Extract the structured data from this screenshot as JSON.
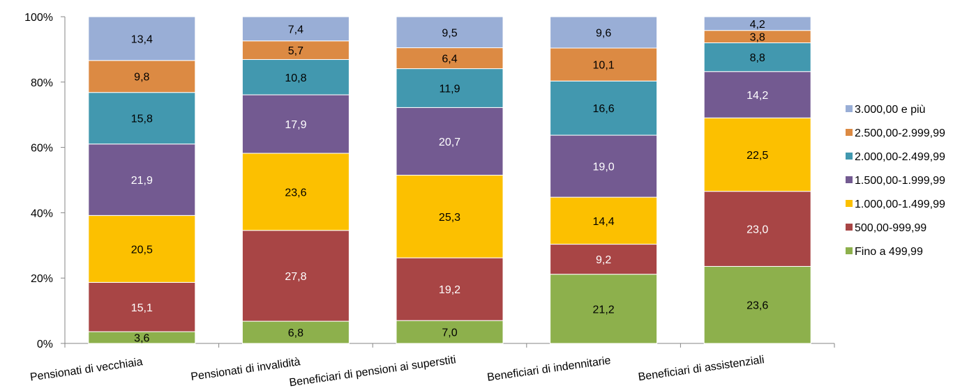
{
  "chart_data": {
    "type": "bar",
    "stacked": true,
    "normalized_percent": true,
    "title": "",
    "xlabel": "",
    "ylabel": "",
    "ylim": [
      0,
      100
    ],
    "yticks": [
      "0%",
      "20%",
      "40%",
      "60%",
      "80%",
      "100%"
    ],
    "grid": false,
    "legend_position": "right",
    "categories": [
      "Pensionati di vecchiaia",
      "Pensionati di invalidità",
      "Beneficiari di pensioni ai superstiti",
      "Beneficiari di indennitarie",
      "Beneficiari di assistenziali"
    ],
    "series": [
      {
        "name": "Fino a 499,99",
        "color": "#8DB04C",
        "values": [
          "3,6",
          "6,8",
          "7,0",
          "21,2",
          "23,6"
        ]
      },
      {
        "name": "500,00-999,99",
        "color": "#A84545",
        "values": [
          "15,1",
          "27,8",
          "19,2",
          "9,2",
          "23,0"
        ]
      },
      {
        "name": "1.000,00-1.499,99",
        "color": "#FCC000",
        "values": [
          "20,5",
          "23,6",
          "25,3",
          "14,4",
          "22,5"
        ]
      },
      {
        "name": "1.500,00-1.999,99",
        "color": "#735A91",
        "values": [
          "21,9",
          "17,9",
          "20,7",
          "19,0",
          "14,2"
        ]
      },
      {
        "name": "2.000,00-2.499,99",
        "color": "#4298AF",
        "values": [
          "15,8",
          "10,8",
          "11,9",
          "16,6",
          "8,8"
        ]
      },
      {
        "name": "2.500,00-2.999,99",
        "color": "#DC8A43",
        "values": [
          "9,8",
          "5,7",
          "6,4",
          "10,1",
          "3,8"
        ]
      },
      {
        "name": "3.000,00 e più",
        "color": "#99AED6",
        "values": [
          "13,4",
          "7,4",
          "9,5",
          "9,6",
          "4,2"
        ]
      }
    ],
    "label_colors": {
      "dark": "#000000",
      "light": "#ffffff"
    }
  }
}
